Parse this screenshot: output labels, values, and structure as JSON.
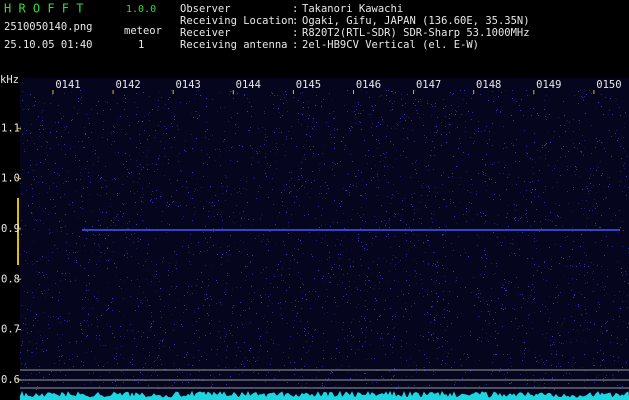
{
  "header": {
    "app_name": "H R O F F T",
    "version": "1.0.0",
    "file_name": "2510050140.png",
    "detection_label": "meteor",
    "datetime": "25.10.05 01:40",
    "detection_count": "1",
    "info": [
      {
        "label": "Observer",
        "value": "Takanori Kawachi"
      },
      {
        "label": "Receiving Location",
        "value": "Ogaki, Gifu, JAPAN (136.60E, 35.35N)"
      },
      {
        "label": "Receiver",
        "value": "R820T2(RTL-SDR) SDR-Sharp 53.1000MHz"
      },
      {
        "label": "Receiving antenna",
        "value": "2el-HB9CV Vertical (el. E-W)"
      }
    ]
  },
  "chart_data": {
    "type": "spectrogram",
    "y_label": "kHz",
    "categories": [
      "0141",
      "0142",
      "0143",
      "0144",
      "0145",
      "0146",
      "0147",
      "0148",
      "0149",
      "0150"
    ],
    "ylim": [
      0.56,
      1.2
    ],
    "yticks": [
      0.6,
      0.7,
      0.8,
      0.9,
      {
        "value": 1,
        "label": "1.0"
      },
      1.1
    ]
  }
}
